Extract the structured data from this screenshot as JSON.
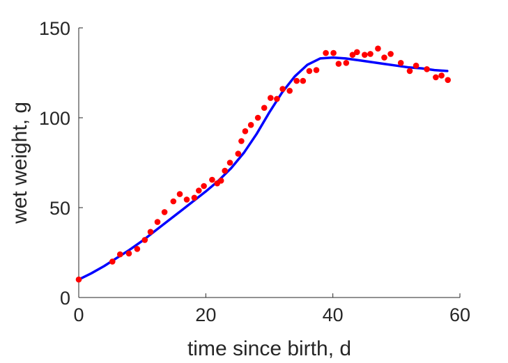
{
  "chart_data": {
    "type": "scatter",
    "title": "",
    "xlabel": "time since birth, d",
    "ylabel": "wet weight, g",
    "xlim": [
      0,
      60
    ],
    "ylim": [
      0,
      150
    ],
    "xticks": [
      "0",
      "20",
      "40",
      "60"
    ],
    "yticks": [
      "0",
      "50",
      "100",
      "150"
    ],
    "grid": false,
    "legend": "none",
    "series": [
      {
        "kind": "points",
        "color": "#ff0000",
        "points": [
          [
            0,
            10
          ],
          [
            5.3,
            20
          ],
          [
            6.5,
            24
          ],
          [
            7.9,
            24.5
          ],
          [
            9.2,
            27
          ],
          [
            10.4,
            32
          ],
          [
            11.3,
            36.5
          ],
          [
            12.4,
            42
          ],
          [
            13.5,
            47.5
          ],
          [
            14.9,
            53.5
          ],
          [
            15.9,
            57.5
          ],
          [
            17,
            54.5
          ],
          [
            18.2,
            55.5
          ],
          [
            18.9,
            59.5
          ],
          [
            19.7,
            62
          ],
          [
            21,
            65.5
          ],
          [
            21.8,
            63.5
          ],
          [
            22.4,
            65
          ],
          [
            23,
            70.5
          ],
          [
            23.8,
            75
          ],
          [
            25.1,
            80
          ],
          [
            25.6,
            87
          ],
          [
            26.2,
            92.5
          ],
          [
            27.1,
            96
          ],
          [
            28.2,
            100
          ],
          [
            29.2,
            105.5
          ],
          [
            30.2,
            111
          ],
          [
            31.2,
            110.5
          ],
          [
            32.1,
            116
          ],
          [
            33.2,
            115
          ],
          [
            34.3,
            120.5
          ],
          [
            35.3,
            120.5
          ],
          [
            36.3,
            126
          ],
          [
            37.4,
            126.5
          ],
          [
            38.9,
            136
          ],
          [
            40.1,
            136
          ],
          [
            40.9,
            130
          ],
          [
            42.1,
            130.5
          ],
          [
            43.1,
            135
          ],
          [
            43.8,
            136.5
          ],
          [
            45,
            135
          ],
          [
            45.9,
            135.5
          ],
          [
            47.1,
            138.5
          ],
          [
            48.1,
            133.5
          ],
          [
            49.1,
            135.5
          ],
          [
            50.7,
            130.5
          ],
          [
            52.1,
            126
          ],
          [
            53.1,
            129
          ],
          [
            54.8,
            127
          ],
          [
            56.2,
            122.5
          ],
          [
            57.1,
            123.5
          ],
          [
            58.1,
            121
          ]
        ]
      },
      {
        "kind": "line",
        "color": "#0000ff",
        "points": [
          [
            0,
            10
          ],
          [
            2,
            13.5
          ],
          [
            4,
            17.5
          ],
          [
            6,
            22
          ],
          [
            8,
            26.5
          ],
          [
            10,
            31.5
          ],
          [
            12,
            37
          ],
          [
            14,
            42.5
          ],
          [
            16,
            48
          ],
          [
            18,
            53.5
          ],
          [
            20,
            59
          ],
          [
            22,
            65
          ],
          [
            24,
            72
          ],
          [
            26,
            80.5
          ],
          [
            28,
            91
          ],
          [
            30,
            103
          ],
          [
            32,
            114
          ],
          [
            34,
            123
          ],
          [
            36,
            129.5
          ],
          [
            38,
            133
          ],
          [
            40,
            133.5
          ],
          [
            42,
            133
          ],
          [
            44,
            132
          ],
          [
            46,
            131
          ],
          [
            48,
            130
          ],
          [
            50,
            129
          ],
          [
            52,
            128
          ],
          [
            54,
            127.5
          ],
          [
            56,
            126.5
          ],
          [
            58,
            126
          ]
        ]
      }
    ]
  }
}
